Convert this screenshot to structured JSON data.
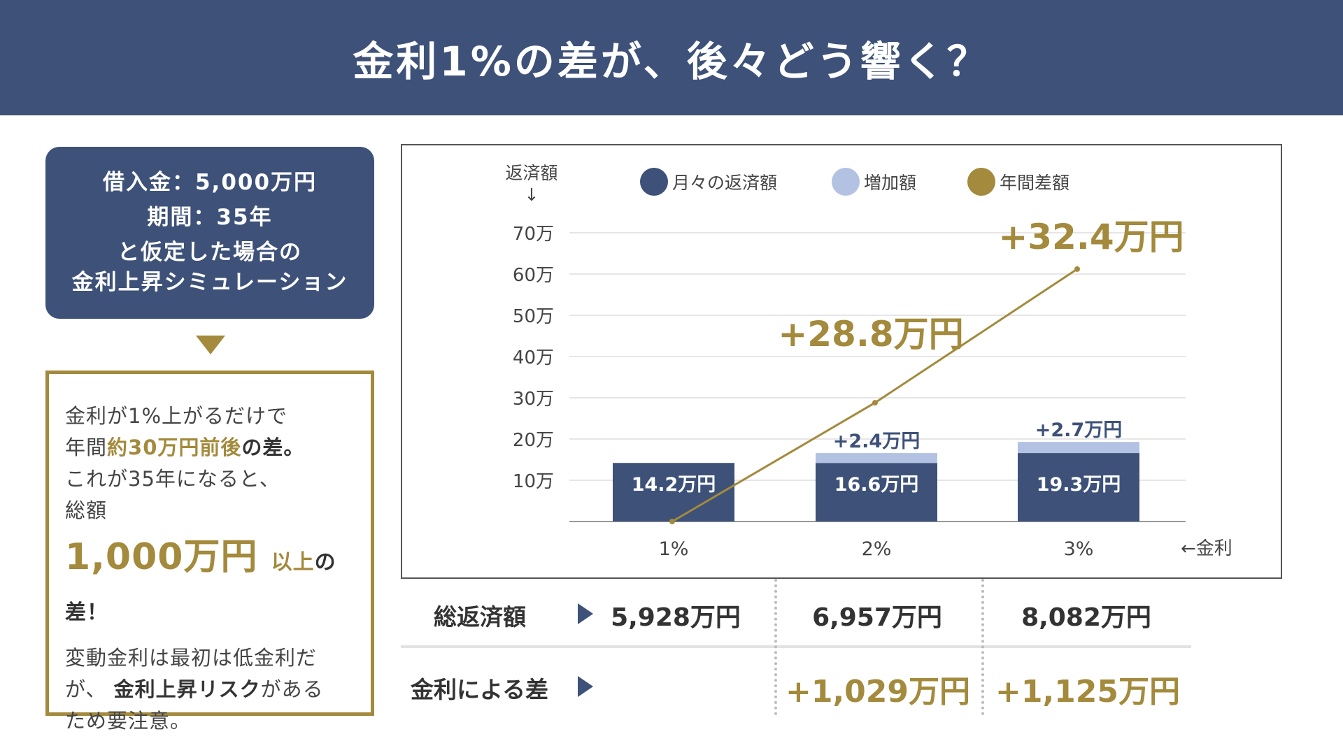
{
  "header": {
    "title": "金利1%の差が、後々どう響く？"
  },
  "conditions": {
    "line1": "借入金：5,000万円",
    "line2": "期間：35年",
    "line3": "と仮定した場合の",
    "line4": "金利上昇シミュレーション"
  },
  "note": {
    "p1_a": "金利が1%上がるだけで",
    "p1_b": "年間",
    "p1_c": "約30万円前後",
    "p1_d": "の差。",
    "p1_e": "これが35年になると、",
    "p1_f": "総額",
    "big_a": "1,000万円",
    "big_b": "以上",
    "big_c": "の差！",
    "p2_a": "変動金利は最初は低金利だ",
    "p2_b": "が、",
    "p2_c": "金利上昇リスク",
    "p2_d": "がある",
    "p2_e": "ため要注意。"
  },
  "colors": {
    "navy": "#3d5179",
    "light": "#b3c2e3",
    "gold": "#a38a3c"
  },
  "chart_data": {
    "type": "bar+line",
    "ylabel": "返済額",
    "ylabel_arrow": "↓",
    "xlabel": "←金利",
    "categories": [
      "1%",
      "2%",
      "3%"
    ],
    "yticks": [
      "10万",
      "20万",
      "30万",
      "40万",
      "50万",
      "60万",
      "70万"
    ],
    "ylim": [
      0,
      70
    ],
    "series": [
      {
        "name": "月々の返済額",
        "type": "bar",
        "values": [
          14.2,
          14.2,
          16.6
        ],
        "labels": [
          "14.2万円",
          "16.6万円",
          "19.3万円"
        ]
      },
      {
        "name": "増加額",
        "type": "bar-stack",
        "values": [
          0,
          2.4,
          2.7
        ],
        "labels": [
          "",
          "+2.4万円",
          "+2.7万円"
        ]
      },
      {
        "name": "年間差額",
        "type": "line",
        "values": [
          0,
          28.8,
          61.2
        ],
        "labels": [
          "",
          "+28.8万円",
          "+32.4万円"
        ]
      }
    ],
    "grid": true,
    "legend": "top"
  },
  "table": {
    "row1_label": "総返済額",
    "row1": [
      "5,928万円",
      "6,957万円",
      "8,082万円"
    ],
    "row2_label": "金利による差",
    "row2": [
      "+1,029万円",
      "+1,125万円"
    ]
  }
}
